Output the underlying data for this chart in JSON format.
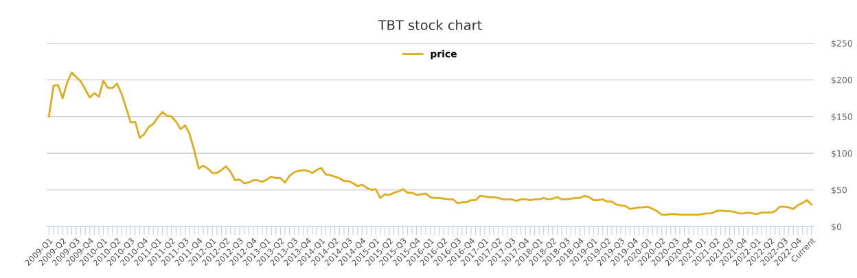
{
  "chart_data": {
    "type": "line",
    "title": "TBT stock chart",
    "categories": [
      "2009-Q1",
      null,
      null,
      "2009-Q2",
      null,
      null,
      "2009-Q3",
      null,
      null,
      "2009-Q4",
      null,
      null,
      "2010-Q1",
      null,
      null,
      "2010-Q2",
      null,
      null,
      "2010-Q3",
      null,
      null,
      "2010-Q4",
      null,
      null,
      "2011-Q1",
      null,
      null,
      "2011-Q2",
      null,
      null,
      "2011-Q3",
      null,
      null,
      "2011-Q4",
      null,
      null,
      "2012-Q1",
      null,
      null,
      "2012-Q2",
      null,
      null,
      "2012-Q3",
      null,
      null,
      "2012-Q4",
      null,
      null,
      "2013-Q1",
      null,
      null,
      "2013-Q2",
      null,
      null,
      "2013-Q3",
      null,
      null,
      "2013-Q4",
      null,
      null,
      "2014-Q1",
      null,
      null,
      "2014-Q2",
      null,
      null,
      "2014-Q3",
      null,
      null,
      "2014-Q4",
      null,
      null,
      "2015-Q1",
      null,
      null,
      "2015-Q2",
      null,
      null,
      "2015-Q3",
      null,
      null,
      "2015-Q4",
      null,
      null,
      "2016-Q1",
      null,
      null,
      "2016-Q2",
      null,
      null,
      "2016-Q3",
      null,
      null,
      "2016-Q4",
      null,
      null,
      "2017-Q1",
      null,
      null,
      "2017-Q2",
      null,
      null,
      "2017-Q3",
      null,
      null,
      "2017-Q4",
      null,
      null,
      "2018-Q1",
      null,
      null,
      "2018-Q2",
      null,
      null,
      "2018-Q3",
      null,
      null,
      "2018-Q4",
      null,
      null,
      "2019-Q1",
      null,
      null,
      "2019-Q2",
      null,
      null,
      "2019-Q3",
      null,
      null,
      "2019-Q4",
      null,
      null,
      "2020-Q1",
      null,
      null,
      "2020-Q2",
      null,
      null,
      "2020-Q3",
      null,
      null,
      "2020-Q4",
      null,
      null,
      "2021-Q1",
      null,
      null,
      "2021-Q2",
      null,
      null,
      "2021-Q3",
      null,
      null,
      "2021-Q4",
      null,
      null,
      "2022-Q1",
      null,
      null,
      "2022-Q2",
      null,
      null,
      "2022-Q3",
      null,
      null,
      "2022-Q4",
      null,
      null,
      "Current"
    ],
    "series": [
      {
        "name": "price",
        "color": "#e0ac1c",
        "values": [
          150,
          192,
          193,
          175,
          196,
          210,
          204,
          198,
          187,
          176,
          182,
          177,
          199,
          189,
          189,
          195,
          181,
          162,
          142,
          143,
          121,
          126,
          136,
          140,
          149,
          156,
          151,
          150,
          143,
          133,
          138,
          126,
          104,
          79,
          83,
          79,
          73,
          73,
          77,
          82,
          75,
          63,
          64,
          59,
          60,
          63,
          63,
          61,
          64,
          68,
          66,
          66,
          60,
          69,
          74,
          76,
          77,
          76,
          73,
          77,
          80,
          71,
          70,
          68,
          66,
          62,
          62,
          59,
          55,
          57,
          53,
          50,
          51,
          39,
          44,
          43,
          46,
          48,
          51,
          46,
          46,
          43,
          44,
          45,
          40,
          39,
          39,
          38,
          37,
          37,
          32,
          33,
          33,
          36,
          36,
          42,
          41,
          40,
          40,
          39,
          37,
          37,
          37,
          35,
          37,
          37,
          36,
          37,
          37,
          39,
          37,
          38,
          40,
          37,
          37,
          38,
          39,
          39,
          42,
          40,
          36,
          36,
          37,
          34,
          34,
          30,
          29,
          28,
          24,
          25,
          26,
          26,
          27,
          24,
          21,
          16,
          16,
          17,
          17,
          16,
          16,
          16,
          16,
          16,
          17,
          18,
          18,
          21,
          22,
          21,
          21,
          20,
          18,
          18,
          19,
          18,
          17,
          19,
          19,
          19,
          21,
          27,
          27,
          26,
          24,
          29,
          32,
          36,
          30
        ]
      }
    ],
    "ylim": [
      0,
      250
    ],
    "yticks": [
      {
        "value": 0,
        "label": "$0"
      },
      {
        "value": 50,
        "label": "$50"
      },
      {
        "value": 100,
        "label": "$100"
      },
      {
        "value": 150,
        "label": "$150"
      },
      {
        "value": 200,
        "label": "$200"
      },
      {
        "value": 250,
        "label": "$250"
      }
    ],
    "grid": "y",
    "legend": "top",
    "line_style": "solid"
  }
}
